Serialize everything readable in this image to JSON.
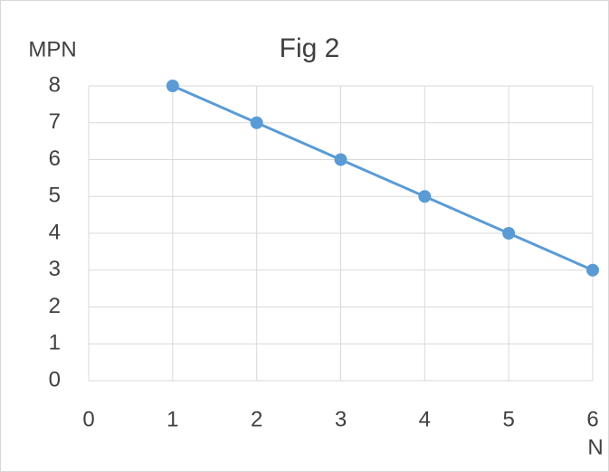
{
  "chart_data": {
    "type": "line",
    "title": "Fig 2",
    "y_label": "MPN",
    "x_label": "N",
    "x": [
      1,
      2,
      3,
      4,
      5,
      6
    ],
    "series": [
      {
        "name": "MPN",
        "color": "#5b9bd5",
        "values": [
          8,
          7,
          6,
          5,
          4,
          3
        ]
      }
    ],
    "xlim": [
      0,
      6
    ],
    "xticks": [
      0,
      1,
      2,
      3,
      4,
      5,
      6
    ],
    "ylim": [
      0,
      8
    ],
    "yticks": [
      0,
      1,
      2,
      3,
      4,
      5,
      6,
      7,
      8
    ],
    "grid": true
  }
}
